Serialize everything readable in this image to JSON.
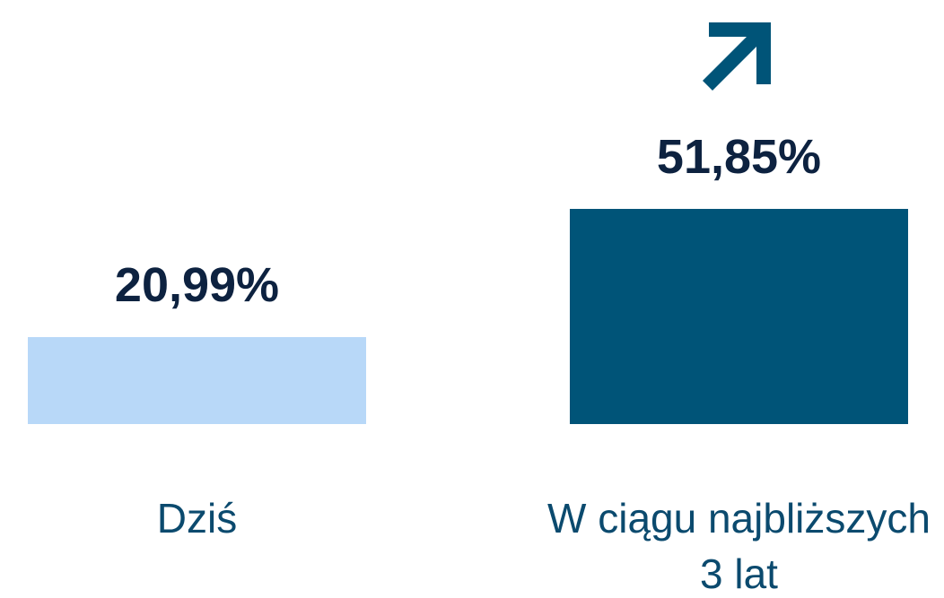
{
  "chart_data": {
    "type": "bar",
    "categories": [
      "Dziś",
      "W ciągu najbliższych 3 lat"
    ],
    "values": [
      20.99,
      51.85
    ],
    "value_labels": [
      "20,99%",
      "51,85%"
    ],
    "colors": [
      "#b8d8f8",
      "#005478"
    ]
  }
}
